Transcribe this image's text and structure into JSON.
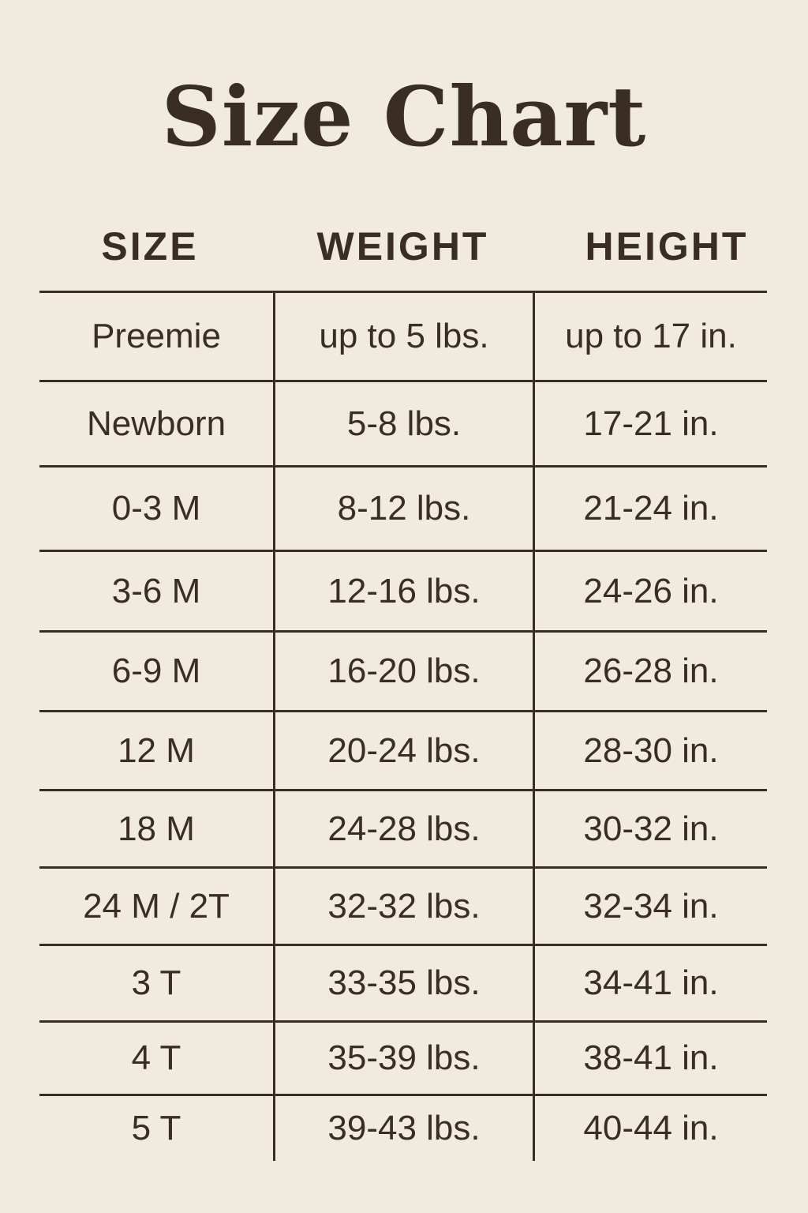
{
  "title": "Size Chart",
  "headers": [
    "SIZE",
    "WEIGHT",
    "HEIGHT"
  ],
  "rows": [
    [
      "Preemie",
      "up to 5 lbs.",
      "up to 17 in."
    ],
    [
      "Newborn",
      "5-8 lbs.",
      "17-21 in."
    ],
    [
      "0-3 M",
      "8-12 lbs.",
      "21-24 in."
    ],
    [
      "3-6 M",
      "12-16 lbs.",
      "24-26 in."
    ],
    [
      "6-9 M",
      "16-20 lbs.",
      "26-28 in."
    ],
    [
      "12 M",
      "20-24 lbs.",
      "28-30 in."
    ],
    [
      "18 M",
      "24-28 lbs.",
      "30-32 in."
    ],
    [
      "24 M / 2T",
      "32-32 lbs.",
      "32-34 in."
    ],
    [
      "3 T",
      "33-35 lbs.",
      "34-41 in."
    ],
    [
      "4 T",
      "35-39 lbs.",
      "38-41 in."
    ],
    [
      "5 T",
      "39-43 lbs.",
      "40-44 in."
    ]
  ],
  "colors": {
    "background": "#f1eadf",
    "text": "#3a2d24"
  }
}
